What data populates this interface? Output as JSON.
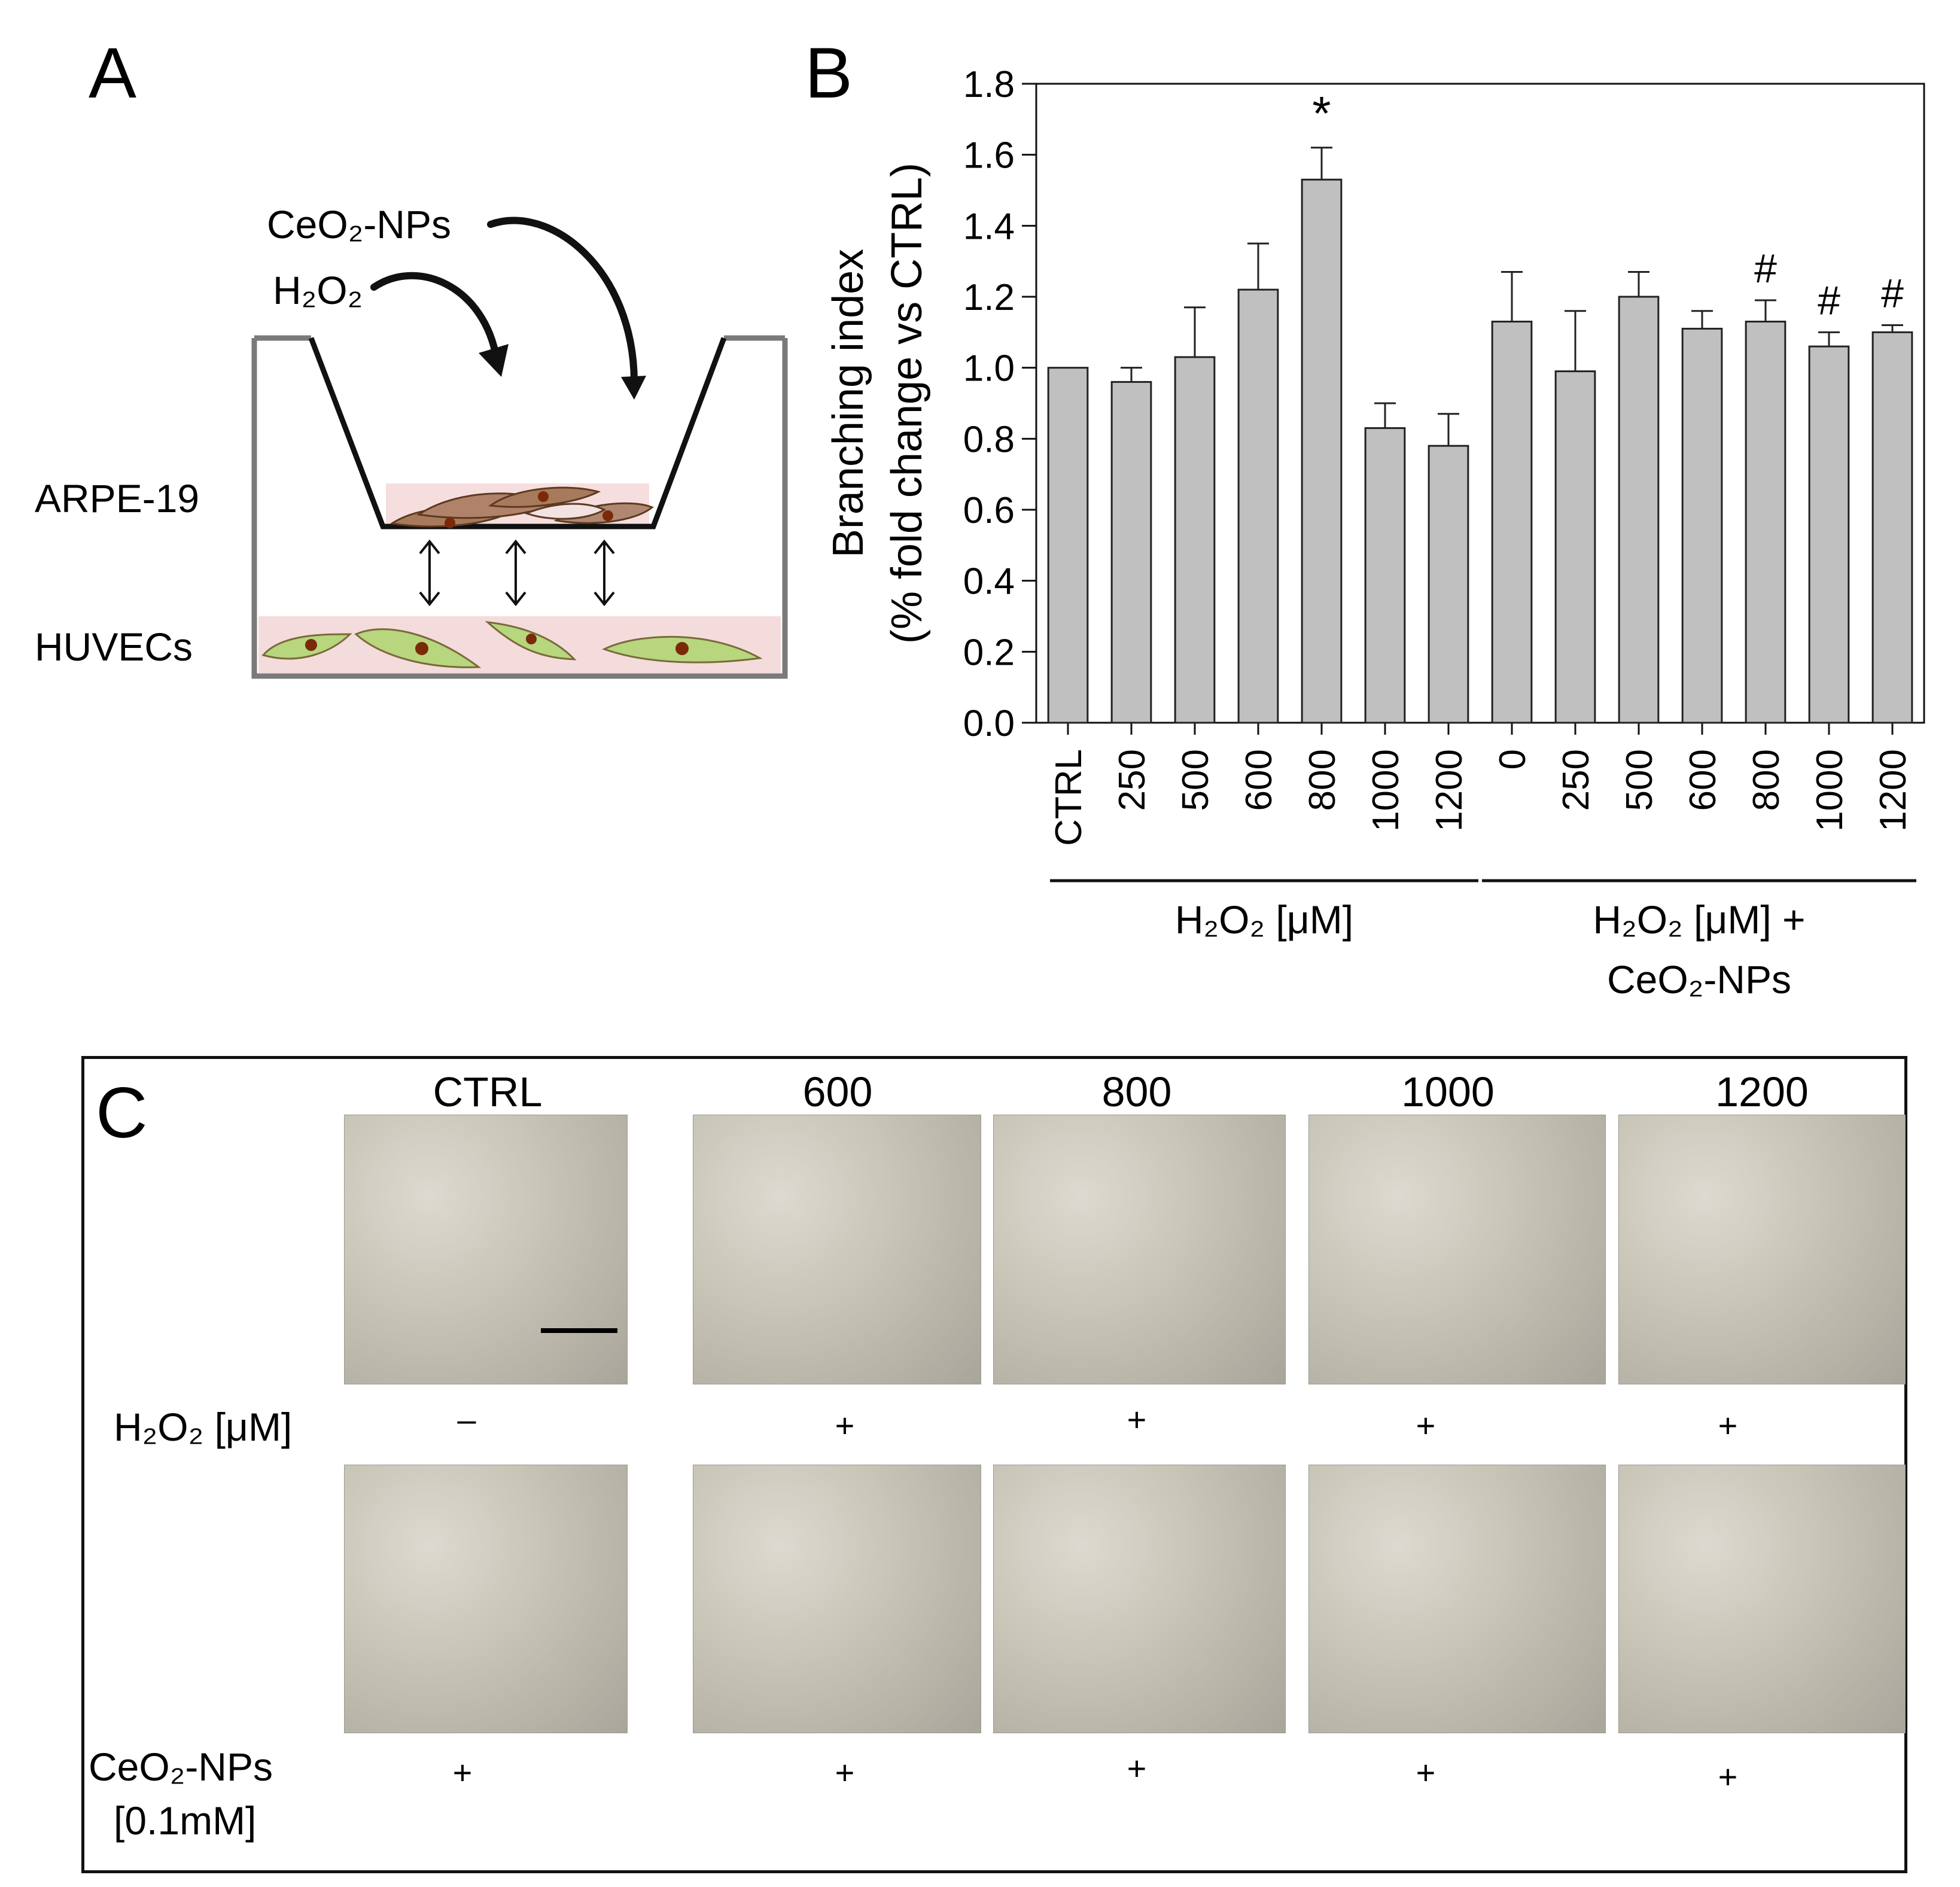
{
  "panelA": {
    "letter": "A",
    "ceo2_np": "CeO₂-NPs",
    "h2o2": "H₂O₂",
    "arpe": "ARPE-19",
    "huvec": "HUVECs",
    "colors": {
      "apical": "#f7dede",
      "arpe_cell": "#a87a5c",
      "huvec_cell": "#b7d67d",
      "nucleus": "#7a2a08"
    }
  },
  "panelB": {
    "letter": "B"
  },
  "chart_data": {
    "type": "bar",
    "ylabel_line1": "Branching index",
    "ylabel_line2": "(% fold change vs CTRL)",
    "ylim": [
      0,
      1.8
    ],
    "yticks": [
      "0.0",
      "0.2",
      "0.4",
      "0.6",
      "0.8",
      "1.0",
      "1.2",
      "1.4",
      "1.6",
      "1.8"
    ],
    "categories": [
      "CTRL",
      "250",
      "500",
      "600",
      "800",
      "1000",
      "1200",
      "0",
      "250",
      "500",
      "600",
      "800",
      "1000",
      "1200"
    ],
    "values": [
      1.0,
      0.96,
      1.03,
      1.22,
      1.53,
      0.83,
      0.78,
      1.13,
      0.99,
      1.2,
      1.11,
      1.13,
      1.06,
      1.1
    ],
    "errors": [
      0.0,
      0.04,
      0.14,
      0.13,
      0.09,
      0.07,
      0.09,
      0.14,
      0.17,
      0.07,
      0.05,
      0.06,
      0.04,
      0.02
    ],
    "markers": [
      "",
      "",
      "",
      "",
      "*",
      "",
      "",
      "",
      "",
      "",
      "",
      "#",
      "#",
      "#"
    ],
    "group1_label": "H₂O₂ [μM]",
    "group2_line1": "H₂O₂ [μM] +",
    "group2_line2": "CeO₂-NPs",
    "bar_color": "#c0c0c0",
    "grid": false
  },
  "panelC": {
    "letter": "C",
    "columns": [
      "CTRL",
      "600",
      "800",
      "1000",
      "1200"
    ],
    "row1_label": "H₂O₂ [μM]",
    "row1_signs": [
      "–",
      "+",
      "+",
      "+",
      "+"
    ],
    "row2_label_line1": "CeO₂-NPs",
    "row2_label_line2": "[0.1mM]",
    "row2_signs": [
      "+",
      "+",
      "+",
      "+",
      "+"
    ]
  }
}
